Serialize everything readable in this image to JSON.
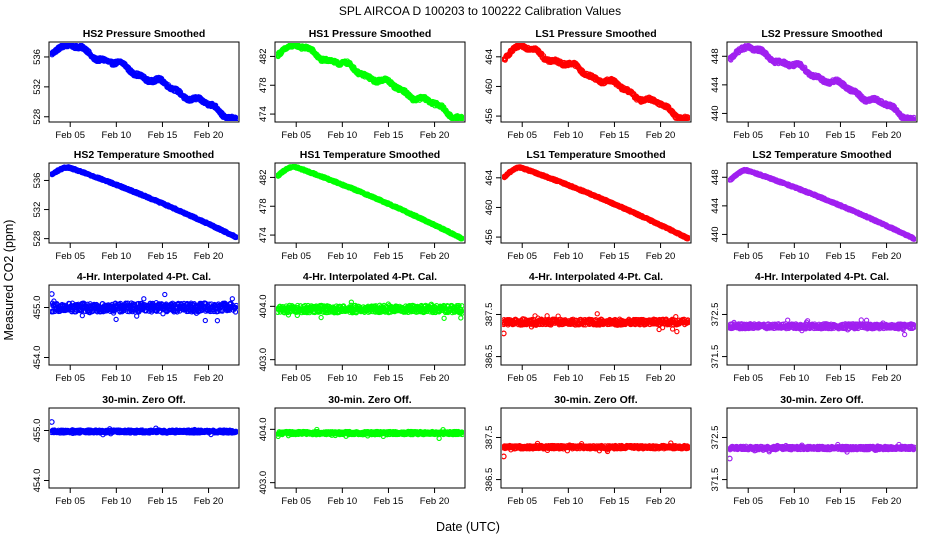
{
  "title": "SPL   AIRCOA D   100203 to 100222   Calibration Values",
  "xlabel": "Date (UTC)",
  "ylabel": "Measured CO2 (ppm)",
  "chart_data": {
    "type": "scatter",
    "x_range_days": [
      2.7,
      23.3
    ],
    "x_ticks": [
      5,
      10,
      15,
      20
    ],
    "x_tick_labels": [
      "Feb 05",
      "Feb 10",
      "Feb 15",
      "Feb 20"
    ],
    "panels": [
      {
        "row": 0,
        "col": 0,
        "title": "HS2 Pressure Smoothed",
        "color": "#0000ff",
        "ylim": [
          527.3,
          538.0
        ],
        "yticks": [
          528,
          532,
          536
        ],
        "ytick_labels": [
          "528",
          "532",
          "536"
        ],
        "shape": "pressure",
        "start": 536.4,
        "peak": 537.6,
        "end": 527.7,
        "noise": 0.25
      },
      {
        "row": 0,
        "col": 1,
        "title": "HS1 Pressure Smoothed",
        "color": "#00ff00",
        "ylim": [
          472.9,
          484.0
        ],
        "yticks": [
          474,
          478,
          482
        ],
        "ytick_labels": [
          "474",
          "478",
          "482"
        ],
        "shape": "pressure",
        "start": 482.2,
        "peak": 483.5,
        "end": 473.4,
        "noise": 0.25
      },
      {
        "row": 0,
        "col": 2,
        "title": "LS1 Pressure Smoothed",
        "color": "#ff0000",
        "ylim": [
          455.2,
          466.0
        ],
        "yticks": [
          456,
          460,
          464
        ],
        "ytick_labels": [
          "456",
          "460",
          "464"
        ],
        "shape": "pressure",
        "start": 463.5,
        "peak": 465.4,
        "end": 455.6,
        "noise": 0.25
      },
      {
        "row": 0,
        "col": 3,
        "title": "LS2 Pressure Smoothed",
        "color": "#a020f0",
        "ylim": [
          438.8,
          450.0
        ],
        "yticks": [
          440,
          444,
          448
        ],
        "ytick_labels": [
          "440",
          "444",
          "448"
        ],
        "shape": "pressure",
        "start": 447.5,
        "peak": 449.2,
        "end": 439.2,
        "noise": 0.25
      },
      {
        "row": 1,
        "col": 0,
        "title": "HS2 Temperature Smoothed",
        "color": "#0000ff",
        "ylim": [
          527.4,
          538.4
        ],
        "yticks": [
          528,
          532,
          536
        ],
        "ytick_labels": [
          "528",
          "532",
          "536"
        ],
        "shape": "temperature",
        "start": 536.8,
        "peak": 537.8,
        "end": 528.2,
        "noise": 0.12
      },
      {
        "row": 1,
        "col": 1,
        "title": "HS1 Temperature Smoothed",
        "color": "#00ff00",
        "ylim": [
          472.9,
          484.0
        ],
        "yticks": [
          474,
          478,
          482
        ],
        "ytick_labels": [
          "474",
          "478",
          "482"
        ],
        "shape": "temperature",
        "start": 482.2,
        "peak": 483.5,
        "end": 473.5,
        "noise": 0.12
      },
      {
        "row": 1,
        "col": 2,
        "title": "LS1 Temperature Smoothed",
        "color": "#ff0000",
        "ylim": [
          455.2,
          466.0
        ],
        "yticks": [
          456,
          460,
          464
        ],
        "ytick_labels": [
          "456",
          "460",
          "464"
        ],
        "shape": "temperature",
        "start": 464.0,
        "peak": 465.4,
        "end": 455.8,
        "noise": 0.12
      },
      {
        "row": 1,
        "col": 3,
        "title": "LS2 Temperature Smoothed",
        "color": "#a020f0",
        "ylim": [
          438.8,
          450.0
        ],
        "yticks": [
          440,
          444,
          448
        ],
        "ytick_labels": [
          "440",
          "444",
          "448"
        ],
        "shape": "temperature",
        "start": 447.5,
        "peak": 449.0,
        "end": 439.4,
        "noise": 0.12
      },
      {
        "row": 2,
        "col": 0,
        "title": "4-Hr. Interpolated 4-Pt. Cal.",
        "color": "#0000ff",
        "ylim": [
          453.85,
          455.45
        ],
        "yticks": [
          454.0,
          455.0
        ],
        "ytick_labels": [
          "454.0",
          "455.0"
        ],
        "shape": "flat",
        "level": 455.0,
        "noise": 0.09,
        "outliers": [
          [
            3.0,
            455.27
          ]
        ]
      },
      {
        "row": 2,
        "col": 1,
        "title": "4-Hr. Interpolated 4-Pt. Cal.",
        "color": "#00ff00",
        "ylim": [
          402.9,
          404.4
        ],
        "yticks": [
          403.0,
          404.0
        ],
        "ytick_labels": [
          "403.0",
          "404.0"
        ],
        "shape": "flat",
        "level": 403.95,
        "noise": 0.07,
        "outliers": []
      },
      {
        "row": 2,
        "col": 2,
        "title": "4-Hr. Interpolated 4-Pt. Cal.",
        "color": "#ff0000",
        "ylim": [
          386.3,
          388.2
        ],
        "yticks": [
          386.5,
          387.5
        ],
        "ytick_labels": [
          "386.5",
          "387.5"
        ],
        "shape": "flat",
        "level": 387.32,
        "noise": 0.07,
        "outliers": [
          [
            3.0,
            387.05
          ]
        ]
      },
      {
        "row": 2,
        "col": 3,
        "title": "4-Hr. Interpolated 4-Pt. Cal.",
        "color": "#a020f0",
        "ylim": [
          371.3,
          373.2
        ],
        "yticks": [
          371.5,
          372.5
        ],
        "ytick_labels": [
          "371.5",
          "372.5"
        ],
        "shape": "flat",
        "level": 372.22,
        "noise": 0.06,
        "outliers": []
      },
      {
        "row": 3,
        "col": 0,
        "title": "30-min. Zero Off.",
        "color": "#0000ff",
        "ylim": [
          453.85,
          455.45
        ],
        "yticks": [
          454.0,
          455.0
        ],
        "ytick_labels": [
          "454.0",
          "455.0"
        ],
        "shape": "flat",
        "level": 454.98,
        "noise": 0.03,
        "outliers": [
          [
            3.0,
            455.17
          ]
        ]
      },
      {
        "row": 3,
        "col": 1,
        "title": "30-min. Zero Off.",
        "color": "#00ff00",
        "ylim": [
          402.9,
          404.4
        ],
        "yticks": [
          403.0,
          404.0
        ],
        "ytick_labels": [
          "403.0",
          "404.0"
        ],
        "shape": "flat",
        "level": 403.93,
        "noise": 0.03,
        "outliers": []
      },
      {
        "row": 3,
        "col": 2,
        "title": "30-min. Zero Off.",
        "color": "#ff0000",
        "ylim": [
          386.3,
          388.2
        ],
        "yticks": [
          386.5,
          387.5
        ],
        "ytick_labels": [
          "386.5",
          "387.5"
        ],
        "shape": "flat",
        "level": 387.27,
        "noise": 0.04,
        "outliers": [
          [
            3.0,
            387.05
          ]
        ]
      },
      {
        "row": 3,
        "col": 3,
        "title": "30-min. Zero Off.",
        "color": "#a020f0",
        "ylim": [
          371.3,
          373.2
        ],
        "yticks": [
          371.5,
          372.5
        ],
        "ytick_labels": [
          "371.5",
          "372.5"
        ],
        "shape": "flat",
        "level": 372.25,
        "noise": 0.04,
        "outliers": [
          [
            3.0,
            372.0
          ]
        ]
      }
    ]
  }
}
